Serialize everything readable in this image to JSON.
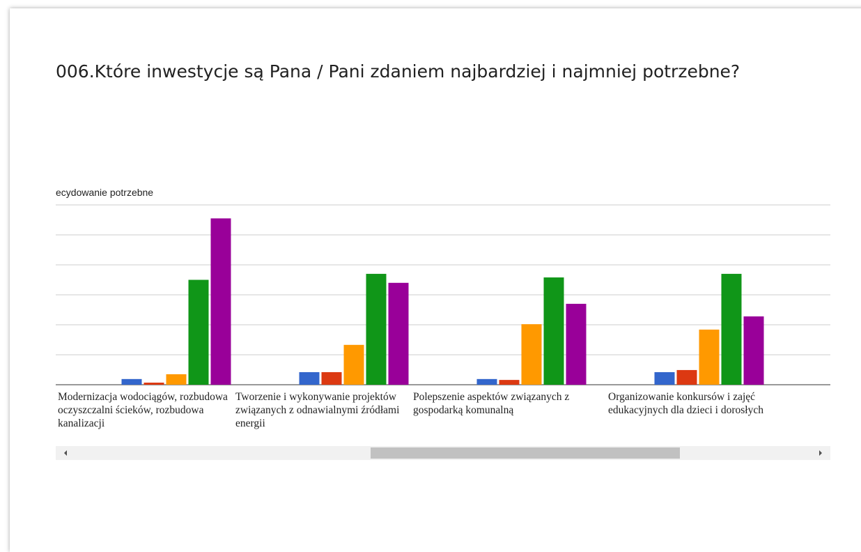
{
  "title": "006.Które inwestycje są Pana / Pani zdaniem najbardziej i najmniej potrzebne?",
  "chart_data": {
    "type": "bar",
    "legend_text": "ecydowanie potrzebne",
    "categories": [
      "Modernizacja wodociągów, rozbudowa oczyszczalni ścieków, rozbudowa kanalizacji",
      "Tworzenie i wykonywanie projektów związanych z odnawialnymi źródłami energii",
      "Polepszenie aspektów związanych z gospodarką komunalną",
      "Organizowanie konkursów i zajęć edukacyjnych dla dzieci i dorosłych"
    ],
    "series": [
      {
        "color": "#3366cc",
        "values": [
          0.19,
          0.42,
          0.19,
          0.42
        ]
      },
      {
        "color": "#dc3912",
        "values": [
          0.07,
          0.42,
          0.16,
          0.49
        ]
      },
      {
        "color": "#ff9900",
        "values": [
          0.35,
          1.33,
          2.02,
          1.84
        ]
      },
      {
        "color": "#109618",
        "values": [
          3.5,
          3.7,
          3.58,
          3.7
        ]
      },
      {
        "color": "#990099",
        "values": [
          5.55,
          3.4,
          2.7,
          2.28
        ]
      }
    ],
    "ylim": [
      0,
      6
    ],
    "yticks": [
      0,
      1,
      2,
      3,
      4,
      5,
      6
    ],
    "grid": true
  }
}
